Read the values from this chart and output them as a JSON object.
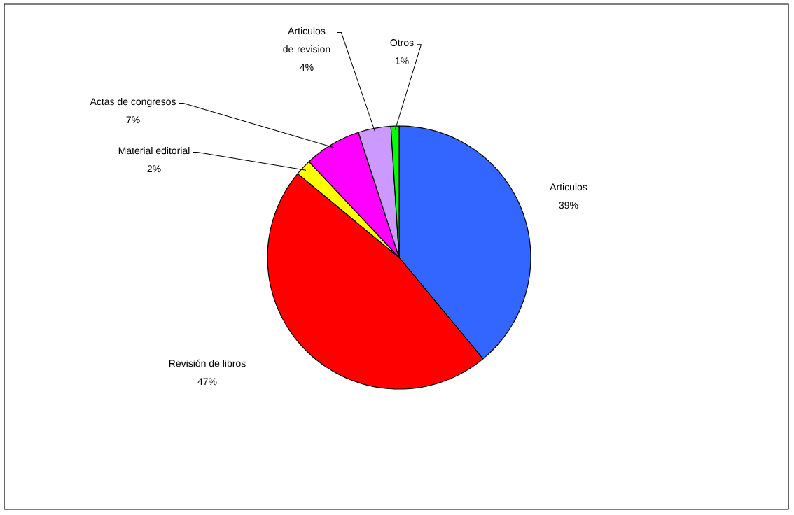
{
  "chart_data": {
    "type": "pie",
    "categories": [
      "Articulos",
      "Revisión de libros",
      "Material editorial",
      "Actas de congresos",
      "Articulos de revision",
      "Otros"
    ],
    "values": [
      39,
      47,
      2,
      7,
      4,
      1
    ],
    "value_labels": [
      "39%",
      "47%",
      "2%",
      "7%",
      "4%",
      "1%"
    ],
    "colors": [
      "#3366ff",
      "#ff0000",
      "#ffff00",
      "#ff00ff",
      "#cc99ff",
      "#00ff00"
    ],
    "legend": false
  }
}
